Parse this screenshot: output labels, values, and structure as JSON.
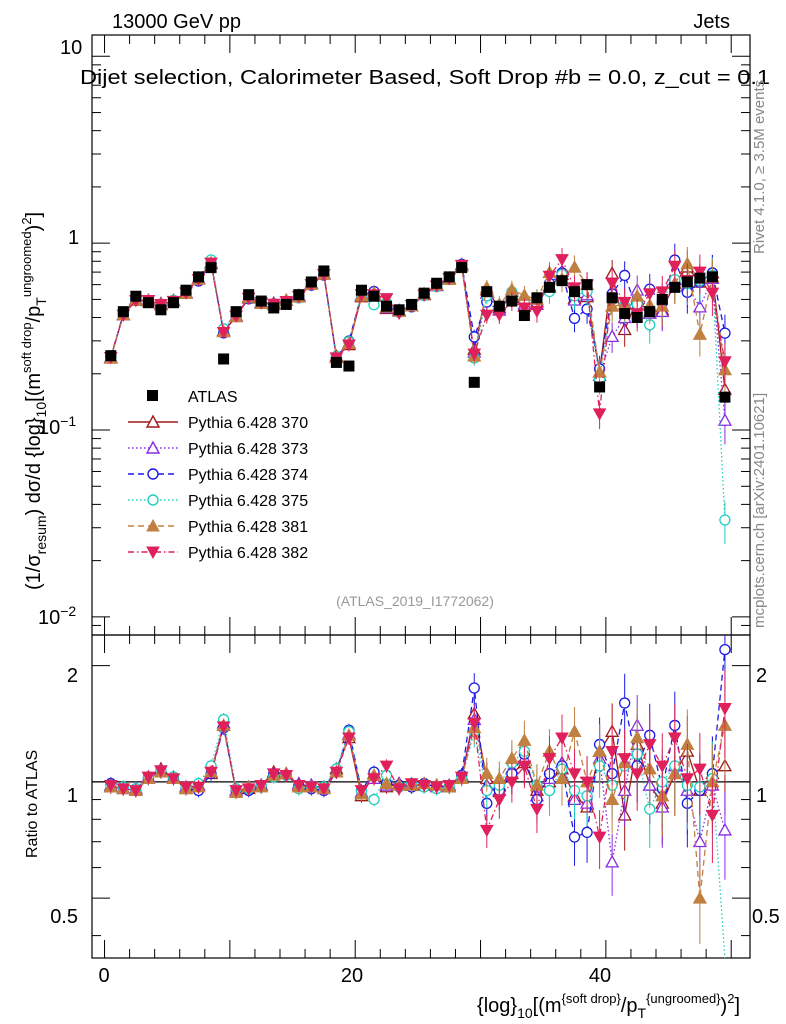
{
  "header": {
    "energy": "13000 GeV pp",
    "type": "Jets",
    "title": "Dijet selection, Calorimeter Based, Soft Drop #b = 0.0, z_cut = 0.1"
  },
  "side": {
    "rivet": "Rivet 4.1.0, ≥ 3.5M events",
    "mcplots": "mcplots.cern.ch [arXiv:2401.10621]"
  },
  "analysis_tag": "(ATLAS_2019_I1772062)",
  "axis_text": {
    "y_main_parts": [
      "(1/σ",
      "resum",
      ") dσ/d {log}",
      "10",
      "[(m",
      "soft drop",
      "/p",
      "T",
      "ungroomed",
      ")",
      "2",
      "]"
    ],
    "x_parts": [
      "{log}",
      "10",
      "[(m",
      "{soft drop}",
      "/p",
      "T",
      "{ungroomed}",
      ")",
      "2",
      "]"
    ],
    "y_ratio": "Ratio to ATLAS",
    "main_ticks": [
      "10",
      "1",
      "10",
      "−1",
      "10",
      "−2"
    ],
    "ratio_ticks": [
      "2",
      "1",
      "0.5",
      "2",
      "1",
      "0.5"
    ],
    "x_ticks": [
      "0",
      "20",
      "40"
    ]
  },
  "legend": [
    {
      "label": "ATLAS",
      "color": "#000000",
      "marker": "filled-square",
      "line": "none"
    },
    {
      "label": "Pythia 6.428 370",
      "color": "#a01818",
      "marker": "open-triangle-up",
      "line": "solid"
    },
    {
      "label": "Pythia 6.428 373",
      "color": "#8a2be2",
      "marker": "open-triangle-up",
      "line": "dotted"
    },
    {
      "label": "Pythia 6.428 374",
      "color": "#1a1ae6",
      "marker": "open-circle",
      "line": "dashed"
    },
    {
      "label": "Pythia 6.428 375",
      "color": "#20d0c0",
      "marker": "open-circle",
      "line": "dotted"
    },
    {
      "label": "Pythia 6.428 381",
      "color": "#c08040",
      "marker": "filled-triangle-up",
      "line": "dashed"
    },
    {
      "label": "Pythia 6.428 382",
      "color": "#e0205a",
      "marker": "filled-triangle-down",
      "line": "dashdot"
    }
  ],
  "chart_data": {
    "type": "scatter",
    "x": [
      0.5,
      1.5,
      2.5,
      3.5,
      4.5,
      5.5,
      6.5,
      7.5,
      8.5,
      9.5,
      10.5,
      11.5,
      12.5,
      13.5,
      14.5,
      15.5,
      16.5,
      17.5,
      18.5,
      19.5,
      20.5,
      21.5,
      22.5,
      23.5,
      24.5,
      25.5,
      26.5,
      27.5,
      28.5,
      29.5,
      30.5,
      31.5,
      32.5,
      33.5,
      34.5,
      35.5,
      36.5,
      37.5,
      38.5,
      39.5,
      40.5,
      41.5,
      42.5,
      43.5,
      44.5,
      45.5,
      46.5,
      47.5,
      48.5,
      49.5
    ],
    "xlim": [
      -1,
      51.5
    ],
    "ylim_main": [
      0.008,
      13
    ],
    "ylim_ratio": [
      0.35,
      2.4
    ],
    "yscale_main": "log",
    "yscale_ratio": "log",
    "series": [
      {
        "name": "ATLAS",
        "values": [
          0.25,
          0.43,
          0.52,
          0.48,
          0.44,
          0.48,
          0.56,
          0.66,
          0.74,
          0.24,
          0.43,
          0.53,
          0.49,
          0.45,
          0.47,
          0.53,
          0.62,
          0.71,
          0.23,
          0.22,
          0.56,
          0.52,
          0.46,
          0.44,
          0.47,
          0.54,
          0.61,
          0.66,
          0.74,
          0.18,
          0.55,
          0.46,
          0.49,
          0.41,
          0.51,
          0.58,
          0.63,
          0.55,
          0.6,
          0.17,
          0.51,
          0.42,
          0.4,
          0.43,
          0.5,
          0.58,
          0.62,
          0.65,
          0.66,
          0.15
        ]
      },
      {
        "name": "Pythia 6.428 370",
        "ratio": [
          0.97,
          0.96,
          0.95,
          1.02,
          1.08,
          1.02,
          0.96,
          0.98,
          1.05,
          1.4,
          0.94,
          0.96,
          0.98,
          1.06,
          1.05,
          0.98,
          0.98,
          0.96,
          1.08,
          1.3,
          0.92,
          1.05,
          0.97,
          0.99,
          0.98,
          0.98,
          0.98,
          0.97,
          1.02,
          1.5,
          1.02,
          0.98,
          1.05,
          1.12,
          0.95,
          1.0,
          1.08,
          0.92,
          0.86,
          1.2,
          1.35,
          0.82,
          1.25,
          0.98,
          0.88,
          1.05,
          1.2,
          0.95,
          1.05,
          1.1
        ]
      },
      {
        "name": "Pythia 6.428 373",
        "ratio": [
          0.98,
          0.96,
          0.96,
          1.03,
          1.07,
          1.03,
          0.97,
          0.98,
          1.06,
          1.42,
          0.95,
          0.97,
          0.98,
          1.05,
          1.05,
          0.99,
          0.98,
          0.97,
          1.06,
          1.33,
          0.94,
          1.02,
          0.98,
          0.99,
          0.98,
          0.99,
          0.97,
          0.98,
          1.04,
          1.45,
          0.98,
          0.95,
          1.08,
          1.15,
          0.92,
          1.02,
          1.12,
          0.9,
          0.88,
          1.15,
          0.62,
          0.95,
          1.4,
          0.98,
          0.86,
          1.1,
          0.95,
          0.7,
          0.98,
          0.75
        ]
      },
      {
        "name": "Pythia 6.428 374",
        "ratio": [
          0.99,
          0.97,
          0.96,
          1.02,
          1.06,
          1.02,
          0.96,
          0.95,
          1.05,
          1.38,
          0.95,
          0.95,
          0.97,
          1.05,
          1.04,
          0.98,
          0.96,
          0.95,
          1.06,
          1.36,
          0.95,
          1.06,
          0.99,
          0.98,
          0.97,
          0.99,
          0.97,
          0.97,
          1.04,
          1.75,
          0.88,
          0.95,
          1.05,
          1.18,
          0.9,
          1.05,
          1.1,
          0.72,
          0.74,
          1.25,
          1.05,
          1.6,
          1.1,
          1.32,
          0.96,
          1.4,
          0.88,
          0.95,
          1.05,
          2.2
        ]
      },
      {
        "name": "Pythia 6.428 375",
        "ratio": [
          0.98,
          0.97,
          0.96,
          1.03,
          1.07,
          1.03,
          0.97,
          0.99,
          1.1,
          1.45,
          0.96,
          0.96,
          0.98,
          1.03,
          1.04,
          0.96,
          0.97,
          0.97,
          1.08,
          1.35,
          0.95,
          0.9,
          1.04,
          0.97,
          0.99,
          0.97,
          0.96,
          0.97,
          1.02,
          1.35,
          0.95,
          0.98,
          1.12,
          1.2,
          0.98,
          0.95,
          1.08,
          0.95,
          0.92,
          1.1,
          0.98,
          1.1,
          1.18,
          0.85,
          1.0,
          1.1,
          0.98,
          0.97,
          1.02,
          0.22
        ]
      },
      {
        "name": "Pythia 6.428 381",
        "ratio": [
          0.97,
          0.96,
          0.95,
          1.02,
          1.06,
          1.02,
          0.96,
          0.97,
          1.06,
          1.4,
          0.94,
          0.97,
          0.97,
          1.04,
          1.05,
          0.97,
          0.97,
          0.96,
          1.06,
          1.32,
          0.93,
          1.04,
          0.99,
          0.98,
          0.98,
          0.99,
          0.98,
          0.97,
          1.02,
          1.38,
          1.05,
          1.02,
          1.15,
          1.28,
          0.98,
          1.2,
          1.02,
          1.35,
          1.0,
          1.2,
          0.9,
          1.12,
          1.3,
          1.08,
          0.92,
          1.05,
          1.25,
          0.5,
          1.0,
          1.4
        ]
      },
      {
        "name": "Pythia 6.428 382",
        "ratio": [
          0.98,
          0.96,
          0.95,
          1.03,
          1.07,
          1.02,
          0.97,
          0.97,
          1.06,
          1.39,
          0.95,
          0.96,
          0.98,
          1.05,
          1.04,
          0.98,
          0.97,
          0.96,
          1.06,
          1.3,
          0.95,
          1.02,
          1.1,
          0.96,
          0.99,
          0.98,
          0.97,
          0.98,
          1.03,
          1.42,
          0.75,
          0.9,
          1.0,
          1.1,
          0.85,
          1.15,
          1.3,
          1.05,
          1.0,
          0.72,
          1.2,
          1.15,
          1.05,
          1.25,
          1.1,
          1.3,
          1.02,
          1.08,
          0.82,
          1.55
        ]
      }
    ]
  }
}
